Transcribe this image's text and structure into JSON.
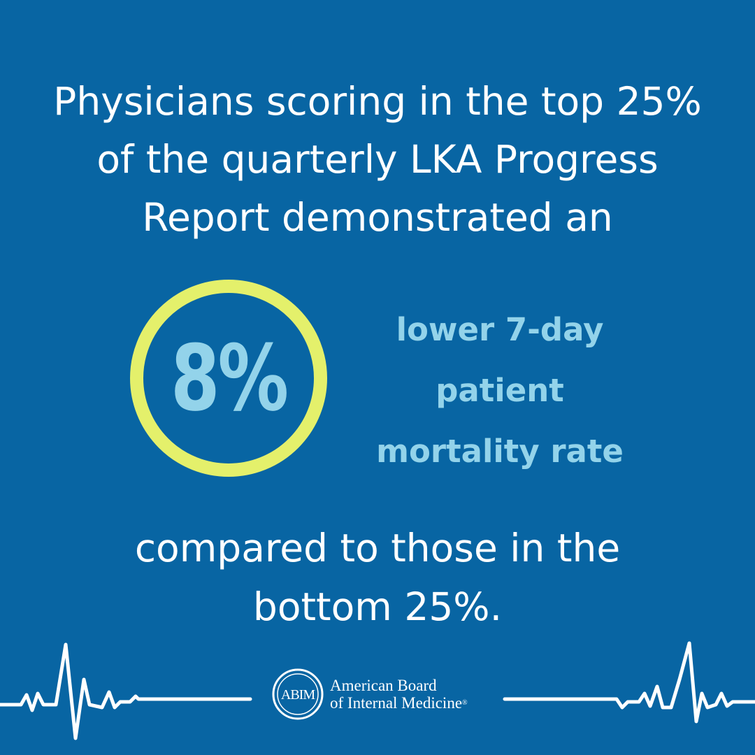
{
  "headline": {
    "line1": "Physicians scoring in the top 25%",
    "line2": "of the quarterly LKA Progress",
    "line3": "Report demonstrated an"
  },
  "stat": {
    "value": "8%",
    "desc_line1": "lower 7-day",
    "desc_line2": "patient",
    "desc_line3": "mortality rate"
  },
  "closing": {
    "line1": "compared to those in the",
    "line2": "bottom 25%."
  },
  "footer": {
    "logo_mark": "ABIM",
    "org_line1": "American Board",
    "org_line2": "of Internal Medicine",
    "registered": "®"
  },
  "colors": {
    "background": "#0865a3",
    "ring": "#e4f06b",
    "accent_text": "#93d3ea",
    "text": "#ffffff"
  },
  "icons": [
    "heartbeat-line-left",
    "heartbeat-line-right",
    "abim-seal-icon"
  ]
}
